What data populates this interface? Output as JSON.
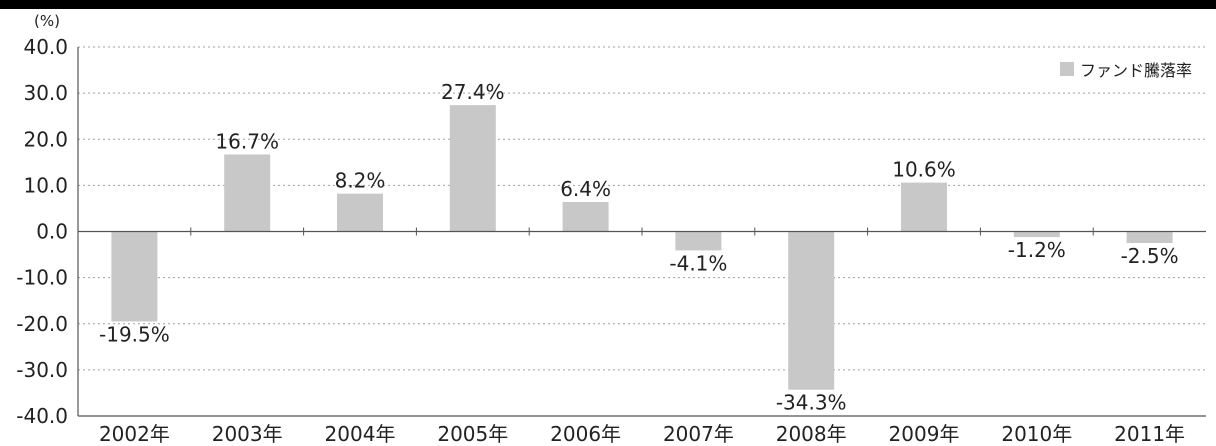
{
  "chart_data": {
    "type": "bar",
    "y_unit": "(%)",
    "categories": [
      "2002年",
      "2003年",
      "2004年",
      "2005年",
      "2006年",
      "2007年",
      "2008年",
      "2009年",
      "2010年",
      "2011年"
    ],
    "series": [
      {
        "name": "ファンド騰落率",
        "values": [
          -19.5,
          16.7,
          8.2,
          27.4,
          6.4,
          -4.1,
          -34.3,
          10.6,
          -1.2,
          -2.5
        ],
        "labels": [
          "-19.5%",
          "16.7%",
          "8.2%",
          "27.4%",
          "6.4%",
          "-4.1%",
          "-34.3%",
          "10.6%",
          "-1.2%",
          "-2.5%"
        ],
        "color": "#c8c8c8"
      }
    ],
    "ylim": [
      -40,
      40
    ],
    "yticks": [
      40,
      30,
      20,
      10,
      0,
      -10,
      -20,
      -30,
      -40
    ],
    "ytick_labels": [
      "40.0",
      "30.0",
      "20.0",
      "10.0",
      "0.0",
      "-10.0",
      "-20.0",
      "-30.0",
      "-40.0"
    ],
    "grid": "dotted-horizontal",
    "legend_position": "top-right",
    "title": "",
    "xlabel": "",
    "ylabel": ""
  }
}
